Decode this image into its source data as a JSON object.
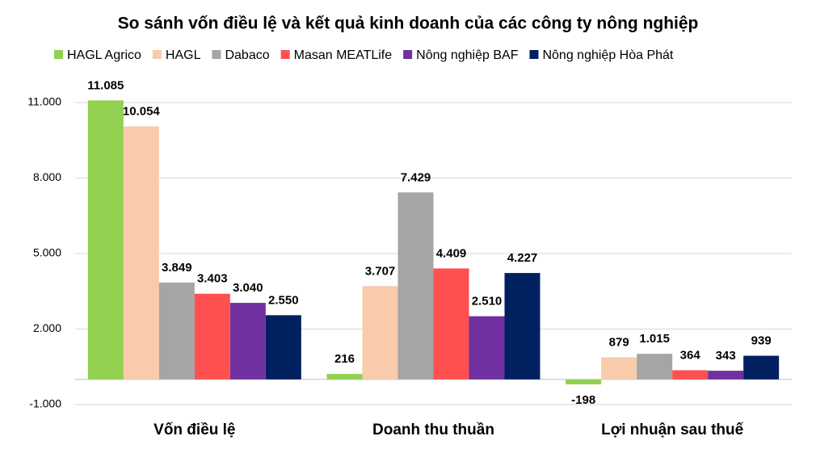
{
  "chart_data": {
    "type": "bar",
    "title": "So sánh vốn điều lệ và kết quả kinh doanh của các công ty nông nghiệp",
    "categories": [
      "Vốn điều lệ",
      "Doanh thu thuần",
      "Lợi nhuận sau thuế"
    ],
    "series": [
      {
        "name": "HAGL Agrico",
        "color": "#92d050",
        "values": [
          11085,
          216,
          -198
        ],
        "value_labels": [
          "11.085",
          "216",
          "-198"
        ]
      },
      {
        "name": "HAGL",
        "color": "#f8cbad",
        "values": [
          10054,
          3707,
          879
        ],
        "value_labels": [
          "10.054",
          "3.707",
          "879"
        ]
      },
      {
        "name": "Dabaco",
        "color": "#a5a5a5",
        "values": [
          3849,
          7429,
          1015
        ],
        "value_labels": [
          "3.849",
          "7.429",
          "1.015"
        ]
      },
      {
        "name": "Masan MEATLife",
        "color": "#ff5050",
        "values": [
          3403,
          4409,
          364
        ],
        "value_labels": [
          "3.403",
          "4.409",
          "364"
        ]
      },
      {
        "name": "Nông nghiệp BAF",
        "color": "#7030a0",
        "values": [
          3040,
          2510,
          343
        ],
        "value_labels": [
          "3.040",
          "2.510",
          "343"
        ]
      },
      {
        "name": "Nông nghiệp Hòa Phát",
        "color": "#002060",
        "values": [
          2550,
          4227,
          939
        ],
        "value_labels": [
          "2.550",
          "4.227",
          "939"
        ]
      }
    ],
    "ylim": [
      -1000,
      11000
    ],
    "yticks": [
      {
        "value": -1000,
        "label": "-1.000"
      },
      {
        "value": 2000,
        "label": "2.000"
      },
      {
        "value": 5000,
        "label": "5.000"
      },
      {
        "value": 8000,
        "label": "8.000"
      },
      {
        "value": 11000,
        "label": "11.000"
      }
    ],
    "grid": true,
    "legend": "top"
  }
}
